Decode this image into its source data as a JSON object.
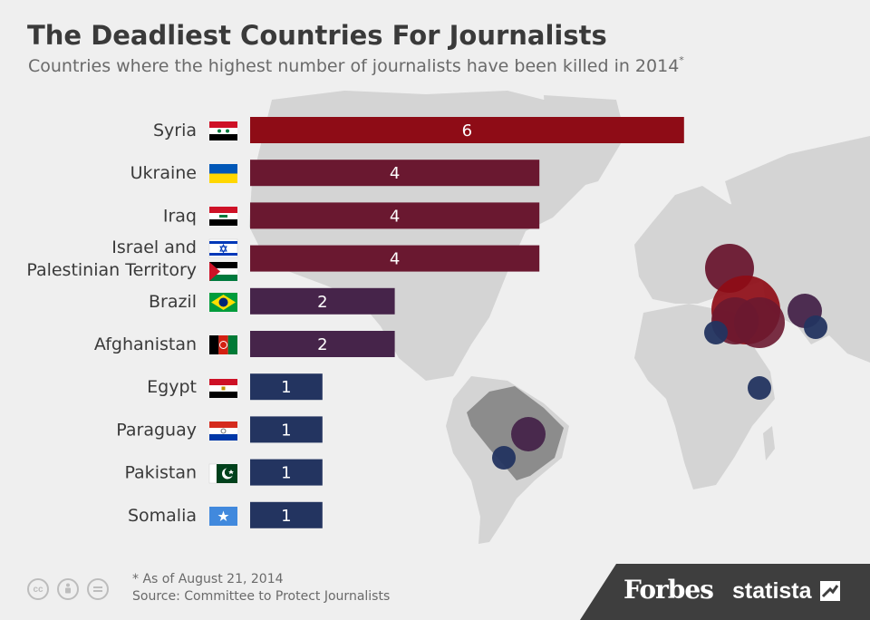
{
  "title": "The Deadliest Countries For Journalists",
  "subtitle": "Countries where the highest number of journalists have been killed in 2014",
  "subtitle_mark": "*",
  "footnote": "* As of August 21, 2014",
  "source": "Source: Committee to Protect Journalists",
  "brand": {
    "forbes": "Forbes",
    "statista": "statista"
  },
  "license_icons": [
    "cc-icon",
    "attribution-icon",
    "no-derivatives-icon"
  ],
  "colors": {
    "background": "#efefef",
    "land": "#d4d4d4",
    "highlight_land": "#8c8c8c",
    "footer": "#3e3e3e"
  },
  "chart_data": {
    "type": "bar",
    "orientation": "horizontal",
    "categories": [
      "Syria",
      "Ukraine",
      "Iraq",
      "Israel and\nPalestinian Territory",
      "Brazil",
      "Afghanistan",
      "Egypt",
      "Paraguay",
      "Pakistan",
      "Somalia"
    ],
    "values": [
      6,
      4,
      4,
      4,
      2,
      2,
      1,
      1,
      1,
      1
    ],
    "bar_colors": [
      "#8e0c16",
      "#6a1830",
      "#6a1830",
      "#6a1830",
      "#46244a",
      "#46244a",
      "#233460",
      "#233460",
      "#233460",
      "#233460"
    ],
    "xlim": [
      0,
      6
    ],
    "grid": false,
    "legend": "none"
  }
}
